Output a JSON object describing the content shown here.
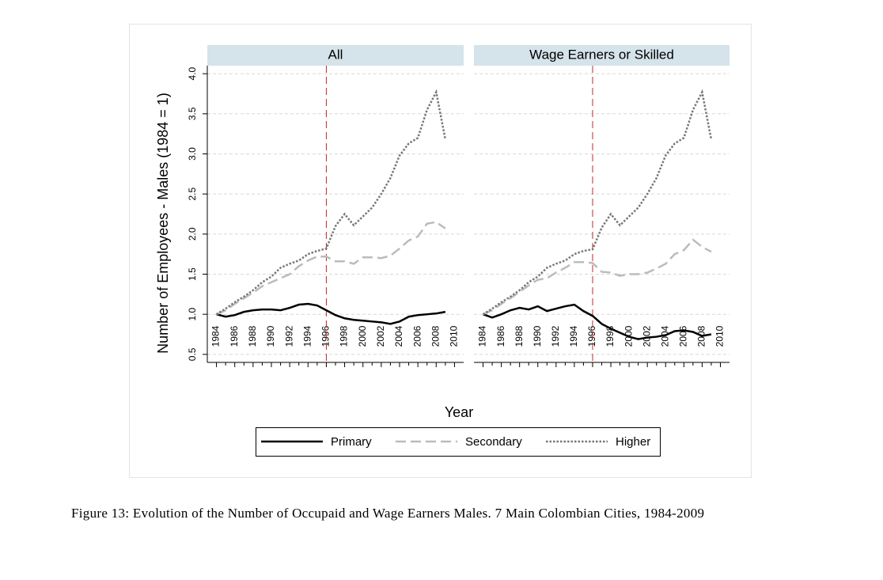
{
  "chart_data": [
    {
      "type": "line",
      "title": "All",
      "x": [
        1984,
        1985,
        1986,
        1987,
        1988,
        1989,
        1990,
        1991,
        1992,
        1993,
        1994,
        1995,
        1996,
        1997,
        1998,
        1999,
        2000,
        2001,
        2002,
        2003,
        2004,
        2005,
        2006,
        2007,
        2008,
        2009
      ],
      "series": [
        {
          "name": "Primary",
          "color": "#000000",
          "style": "solid",
          "values": [
            1.0,
            0.97,
            0.99,
            1.03,
            1.05,
            1.06,
            1.06,
            1.05,
            1.08,
            1.12,
            1.13,
            1.11,
            1.05,
            0.99,
            0.95,
            0.93,
            0.92,
            0.91,
            0.9,
            0.88,
            0.91,
            0.97,
            0.99,
            1.0,
            1.01,
            1.03
          ]
        },
        {
          "name": "Secondary",
          "color": "#bbbbbb",
          "style": "dashed",
          "values": [
            1.0,
            1.05,
            1.13,
            1.2,
            1.27,
            1.35,
            1.4,
            1.45,
            1.5,
            1.6,
            1.67,
            1.72,
            1.72,
            1.66,
            1.66,
            1.63,
            1.71,
            1.71,
            1.7,
            1.73,
            1.82,
            1.92,
            1.97,
            2.13,
            2.15,
            2.07
          ]
        },
        {
          "name": "Higher",
          "color": "#777777",
          "style": "dotted",
          "values": [
            1.0,
            1.07,
            1.15,
            1.22,
            1.3,
            1.4,
            1.47,
            1.58,
            1.63,
            1.67,
            1.75,
            1.79,
            1.82,
            2.1,
            2.25,
            2.11,
            2.22,
            2.33,
            2.5,
            2.7,
            2.98,
            3.13,
            3.2,
            3.55,
            3.77,
            3.18
          ]
        }
      ],
      "xlim": [
        1983,
        2011
      ],
      "ylim": [
        0.4,
        4.1
      ],
      "xticks": [
        1984,
        1986,
        1988,
        1990,
        1992,
        1994,
        1996,
        1998,
        2000,
        2002,
        2004,
        2006,
        2008,
        2010
      ],
      "xminorticks": [
        1985,
        1987,
        1989,
        1991,
        1993,
        1995,
        1997,
        1999,
        2001,
        2003,
        2005,
        2007,
        2009
      ],
      "yticks": [
        0.5,
        {
          "value": 1,
          "label": "1.0"
        },
        1.5,
        {
          "value": 2,
          "label": "2.0"
        },
        2.5,
        {
          "value": 3,
          "label": "3.0"
        },
        3.5,
        {
          "value": 4,
          "label": "4.0"
        }
      ],
      "show_y_axis": true,
      "grid": true,
      "vline": 1996,
      "vline_color": "#c0282d"
    },
    {
      "type": "line",
      "title": "Wage Earners or Skilled",
      "x": [
        1984,
        1985,
        1986,
        1987,
        1988,
        1989,
        1990,
        1991,
        1992,
        1993,
        1994,
        1995,
        1996,
        1997,
        1998,
        1999,
        2000,
        2001,
        2002,
        2003,
        2004,
        2005,
        2006,
        2007,
        2008,
        2009
      ],
      "series": [
        {
          "name": "Primary",
          "color": "#000000",
          "style": "solid",
          "values": [
            1.0,
            0.96,
            1.0,
            1.05,
            1.08,
            1.06,
            1.1,
            1.04,
            1.07,
            1.1,
            1.12,
            1.04,
            0.98,
            0.88,
            0.82,
            0.77,
            0.72,
            0.69,
            0.71,
            0.72,
            0.74,
            0.79,
            0.8,
            0.78,
            0.73,
            0.75
          ]
        },
        {
          "name": "Secondary",
          "color": "#bbbbbb",
          "style": "dashed",
          "values": [
            1.0,
            1.05,
            1.13,
            1.2,
            1.28,
            1.36,
            1.43,
            1.45,
            1.52,
            1.58,
            1.65,
            1.65,
            1.64,
            1.53,
            1.52,
            1.48,
            1.5,
            1.5,
            1.52,
            1.57,
            1.63,
            1.75,
            1.8,
            1.93,
            1.84,
            1.78
          ]
        },
        {
          "name": "Higher",
          "color": "#777777",
          "style": "dotted",
          "values": [
            1.0,
            1.07,
            1.15,
            1.22,
            1.3,
            1.4,
            1.47,
            1.58,
            1.63,
            1.67,
            1.75,
            1.79,
            1.81,
            2.08,
            2.25,
            2.11,
            2.22,
            2.33,
            2.5,
            2.7,
            2.98,
            3.13,
            3.2,
            3.55,
            3.77,
            3.18
          ]
        }
      ],
      "xlim": [
        1983,
        2011
      ],
      "ylim": [
        0.4,
        4.1
      ],
      "xticks": [
        1984,
        1986,
        1988,
        1990,
        1992,
        1994,
        1996,
        1998,
        2000,
        2002,
        2004,
        2006,
        2008,
        2010
      ],
      "xminorticks": [
        1985,
        1987,
        1989,
        1991,
        1993,
        1995,
        1997,
        1999,
        2001,
        2003,
        2005,
        2007,
        2009
      ],
      "yticks": [
        0.5,
        {
          "value": 1,
          "label": "1.0"
        },
        1.5,
        {
          "value": 2,
          "label": "2.0"
        },
        2.5,
        {
          "value": 3,
          "label": "3.0"
        },
        3.5,
        {
          "value": 4,
          "label": "4.0"
        }
      ],
      "show_y_axis": false,
      "grid": true,
      "vline": 1996,
      "vline_color": "#c0282d"
    }
  ],
  "figure": {
    "ylabel": "Number of Employees - Males (1984 = 1)",
    "xlabel": "Year",
    "legend_position": "bottom",
    "caption": "Figure 13:  Evolution of the Number of Occupaid and Wage Earners Males.  7 Main Colombian Cities, 1984-2009"
  }
}
